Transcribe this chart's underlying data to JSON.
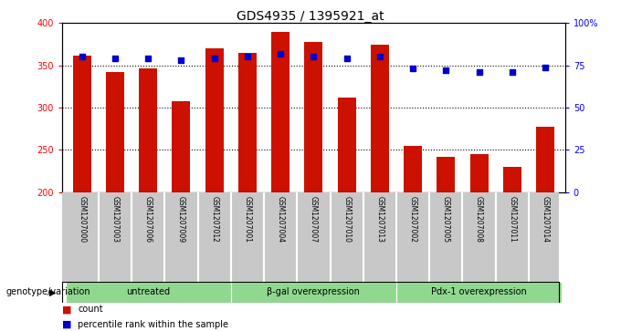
{
  "title": "GDS4935 / 1395921_at",
  "samples": [
    "GSM1207000",
    "GSM1207003",
    "GSM1207006",
    "GSM1207009",
    "GSM1207012",
    "GSM1207001",
    "GSM1207004",
    "GSM1207007",
    "GSM1207010",
    "GSM1207013",
    "GSM1207002",
    "GSM1207005",
    "GSM1207008",
    "GSM1207011",
    "GSM1207014"
  ],
  "counts": [
    362,
    342,
    346,
    308,
    370,
    365,
    390,
    378,
    312,
    375,
    255,
    242,
    245,
    230,
    277
  ],
  "percentiles": [
    80,
    79,
    79,
    78,
    79,
    80,
    82,
    80,
    79,
    80,
    73,
    72,
    71,
    71,
    74
  ],
  "groups": [
    {
      "label": "untreated",
      "start": 0,
      "end": 5
    },
    {
      "label": "β-gal overexpression",
      "start": 5,
      "end": 10
    },
    {
      "label": "Pdx-1 overexpression",
      "start": 10,
      "end": 15
    }
  ],
  "bar_color": "#cc1100",
  "dot_color": "#0000cc",
  "ylim_left": [
    200,
    400
  ],
  "ylim_right": [
    0,
    100
  ],
  "yticks_left": [
    200,
    250,
    300,
    350,
    400
  ],
  "yticks_right": [
    0,
    25,
    50,
    75,
    100
  ],
  "yticklabels_right": [
    "0",
    "25",
    "50",
    "75",
    "100%"
  ],
  "grid_values": [
    250,
    300,
    350
  ],
  "group_bg_color": "#90d890",
  "xlabel_area_color": "#c8c8c8",
  "legend_count_label": "count",
  "legend_pct_label": "percentile rank within the sample",
  "genotype_label": "genotype/variation"
}
